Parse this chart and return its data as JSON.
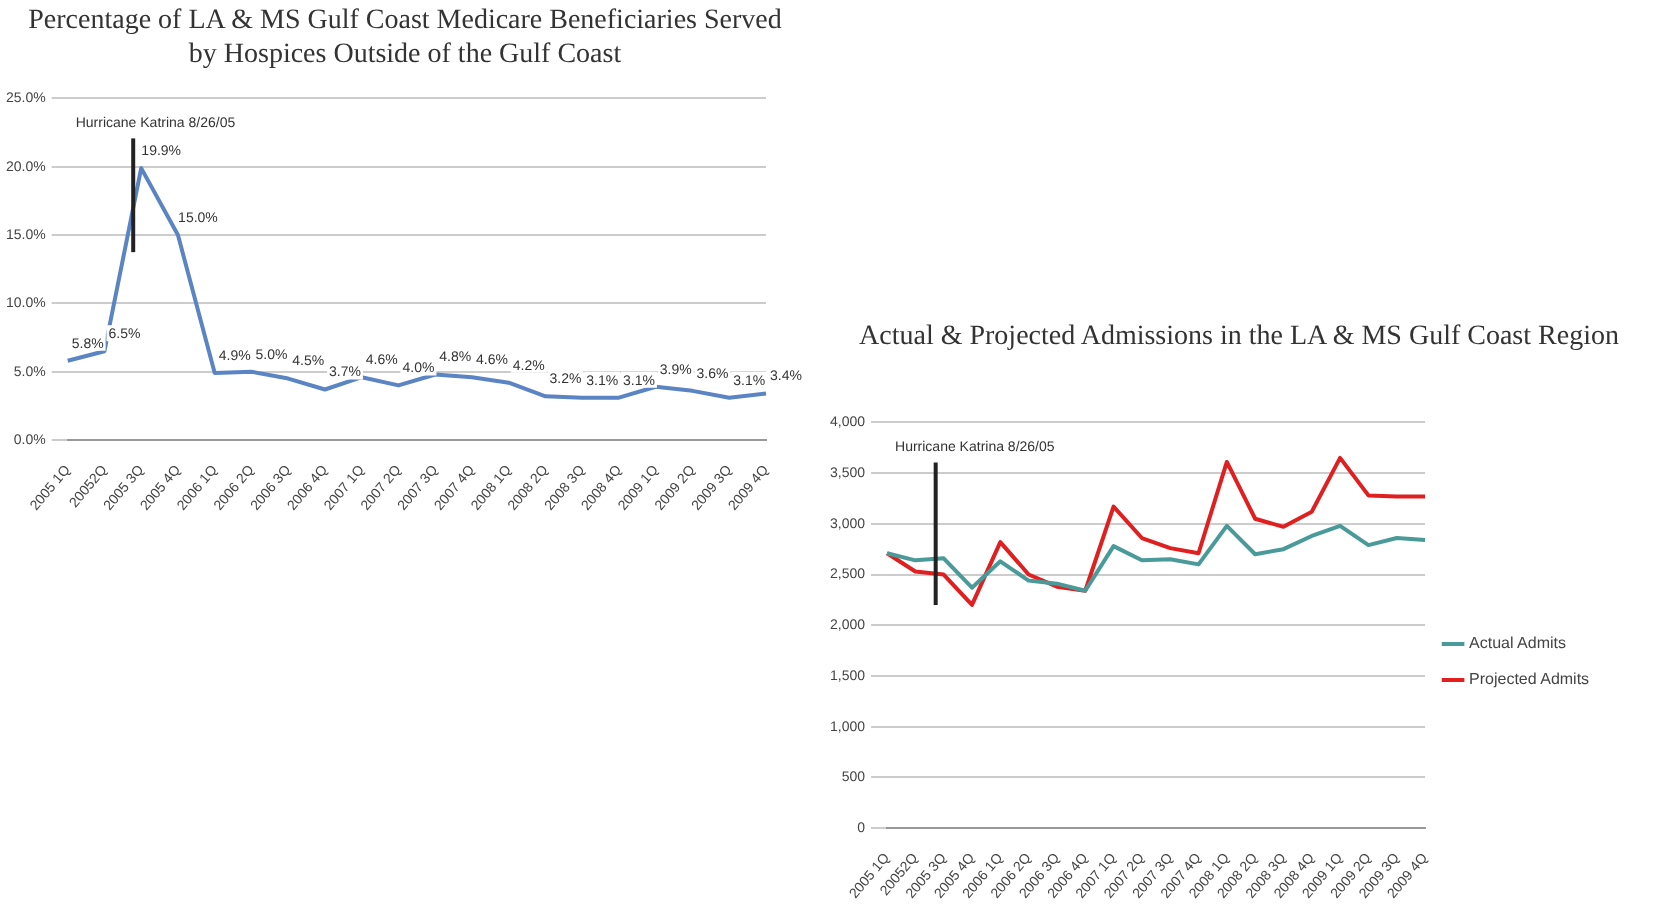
{
  "chart_data": [
    {
      "type": "line",
      "title": "Percentage of LA & MS Gulf Coast Medicare Beneficiaries Served by Hospices Outside of the Gulf Coast",
      "categories": [
        "2005 1Q",
        "20052Q",
        "2005 3Q",
        "2005 4Q",
        "2006 1Q",
        "2006 2Q",
        "2006 3Q",
        "2006 4Q",
        "2007 1Q",
        "2007 2Q",
        "2007 3Q",
        "2007 4Q",
        "2008 1Q",
        "2008 2Q",
        "2008 3Q",
        "2008 4Q",
        "2009 1Q",
        "2009 2Q",
        "2009 3Q",
        "2009 4Q"
      ],
      "series": [
        {
          "color": "#5b84c4",
          "values": [
            5.8,
            6.5,
            19.9,
            15.0,
            4.9,
            5.0,
            4.5,
            3.7,
            4.6,
            4.0,
            4.8,
            4.6,
            4.2,
            3.2,
            3.1,
            3.1,
            3.9,
            3.6,
            3.1,
            3.4
          ],
          "value_labels": [
            "5.8%",
            "6.5%",
            "19.9%",
            "15.0%",
            "4.9%",
            "5.0%",
            "4.5%",
            "3.7%",
            "4.6%",
            "4.0%",
            "4.8%",
            "4.6%",
            "4.2%",
            "3.2%",
            "3.1%",
            "3.1%",
            "3.9%",
            "3.6%",
            "3.1%",
            "3.4%"
          ]
        }
      ],
      "ylim": [
        0,
        25
      ],
      "yticks": [
        {
          "value": 0,
          "label": "0.0%"
        },
        {
          "value": 5,
          "label": "5.0%"
        },
        {
          "value": 10,
          "label": "10.0%"
        },
        {
          "value": 15,
          "label": "15.0%"
        },
        {
          "value": 20,
          "label": "20.0%"
        },
        {
          "value": 25,
          "label": "25.0%"
        }
      ],
      "ref_lines": [
        {
          "axis": "x",
          "value": "2005 3Q",
          "label": "Hurricane Katrina 8/26/05",
          "color": "#222222"
        }
      ],
      "grid": "y",
      "legend": false,
      "marker": "none",
      "line_style": "solid"
    },
    {
      "type": "line",
      "title": "Actual & Projected Admissions in the LA & MS Gulf Coast Region",
      "categories": [
        "2005 1Q",
        "20052Q",
        "2005 3Q",
        "2005 4Q",
        "2006 1Q",
        "2006 2Q",
        "2006 3Q",
        "2006 4Q",
        "2007 1Q",
        "2007 2Q",
        "2007 3Q",
        "2007 4Q",
        "2008 1Q",
        "2008 2Q",
        "2008 3Q",
        "2008 4Q",
        "2009 1Q",
        "2009 2Q",
        "2009 3Q",
        "2009 4Q"
      ],
      "series": [
        {
          "name": "Actual Admits",
          "color": "#4a9a9a",
          "values": [
            2710,
            2640,
            2660,
            2370,
            2630,
            2440,
            2410,
            2340,
            2780,
            2640,
            2650,
            2600,
            2980,
            2700,
            2750,
            2880,
            2980,
            2790,
            2860,
            2840
          ]
        },
        {
          "name": "Projected Admits",
          "color": "#e02020",
          "values": [
            2710,
            2530,
            2500,
            2200,
            2820,
            2500,
            2380,
            2340,
            3170,
            2860,
            2760,
            2710,
            3610,
            3050,
            2970,
            3120,
            3650,
            3280,
            3270,
            3270
          ]
        }
      ],
      "ylim": [
        0,
        4000
      ],
      "yticks": [
        0,
        500,
        {
          "value": 1000,
          "label": "1,000"
        },
        {
          "value": 1500,
          "label": "1,500"
        },
        {
          "value": 2000,
          "label": "2,000"
        },
        {
          "value": 2500,
          "label": "2,500"
        },
        {
          "value": 3000,
          "label": "3,000"
        },
        {
          "value": 3500,
          "label": "3,500"
        },
        {
          "value": 4000,
          "label": "4,000"
        }
      ],
      "ref_lines": [
        {
          "axis": "x",
          "value": "2005 3Q",
          "label": "Hurricane Katrina 8/26/05",
          "color": "#222222"
        }
      ],
      "grid": "y",
      "legend": "right",
      "marker": "none",
      "line_style": "solid"
    }
  ]
}
